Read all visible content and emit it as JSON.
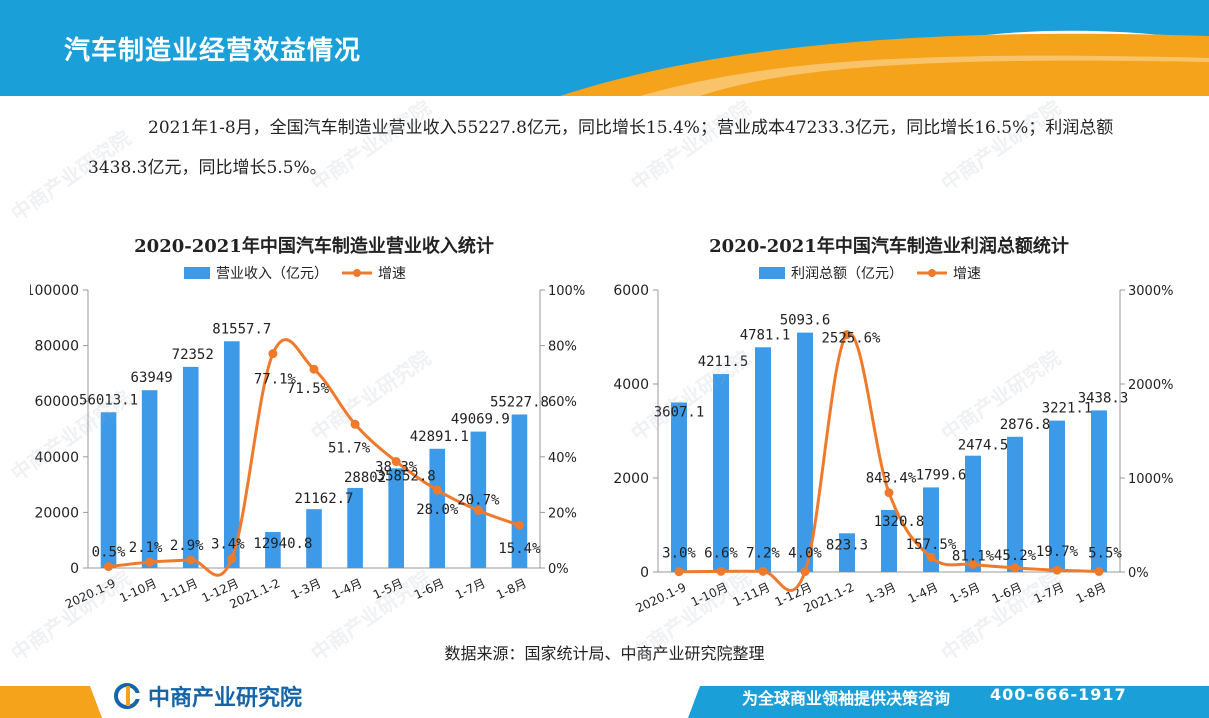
{
  "page": {
    "title": "汽车制造业经营效益情况",
    "summary": "2021年1-8月，全国汽车制造业营业收入55227.8亿元，同比增长15.4%；营业成本47233.3亿元，同比增长16.5%；利润总额3438.3亿元，同比增长5.5%。",
    "source": "数据来源：国家统计局、中商产业研究院整理",
    "logo_text": "中商产业研究院",
    "slogan": "为全球商业领袖提供决策咨询",
    "phone": "400-666-1917",
    "watermark": "中商产业研究院",
    "colors": {
      "header_blue": "#1a9fd8",
      "header_orange": "#f5a31a",
      "bar": "#3d9ae8",
      "line": "#f07a2c",
      "footer_blue": "#1a9fd8"
    }
  },
  "chart_data": [
    {
      "type": "bar",
      "title": "2020-2021年中国汽车制造业营业收入统计",
      "categories": [
        "2020.1-9",
        "1-10月",
        "1-11月",
        "1-12月",
        "2021.1-2",
        "1-3月",
        "1-4月",
        "1-5月",
        "1-6月",
        "1-7月",
        "1-8月"
      ],
      "series": [
        {
          "name": "营业收入（亿元）",
          "type": "bar",
          "axis": "left",
          "values": [
            56013.1,
            63949,
            72352,
            81557.7,
            12940.8,
            21162.7,
            28802,
            35852.8,
            42891.1,
            49069.9,
            55227.8
          ],
          "labels": [
            "56013.1",
            "63949",
            "72352",
            "81557.7",
            "12940.8",
            "21162.7",
            "28802",
            "35852.8",
            "42891.1",
            "49069.9",
            "55227.8"
          ]
        },
        {
          "name": "增速",
          "type": "line",
          "axis": "right",
          "smooth": true,
          "values": [
            0.5,
            2.1,
            2.9,
            3.4,
            77.1,
            71.5,
            51.7,
            38.3,
            28.0,
            20.7,
            15.4
          ],
          "labels": [
            "0.5%",
            "2.1%",
            "2.9%",
            "3.4%",
            "77.1%",
            "71.5%",
            "51.7%",
            "38.3%",
            "28.0%",
            "20.7%",
            "15.4%"
          ]
        }
      ],
      "ylim_left": [
        0,
        100000
      ],
      "yticks_left": [
        "0",
        "20000",
        "40000",
        "60000",
        "80000",
        "100000"
      ],
      "ylim_right": [
        0,
        100
      ],
      "yticks_right": [
        "0%",
        "20%",
        "40%",
        "60%",
        "80%",
        "100%"
      ],
      "legend_placement": "top-center"
    },
    {
      "type": "bar",
      "title": "2020-2021年中国汽车制造业利润总额统计",
      "categories": [
        "2020.1-9",
        "1-10月",
        "1-11月",
        "1-12月",
        "2021.1-2",
        "1-3月",
        "1-4月",
        "1-5月",
        "1-6月",
        "1-7月",
        "1-8月"
      ],
      "series": [
        {
          "name": "利润总额（亿元）",
          "type": "bar",
          "axis": "left",
          "values": [
            3607.1,
            4211.5,
            4781.1,
            5093.6,
            823.3,
            1320.8,
            1799.6,
            2474.5,
            2876.8,
            3221.1,
            3438.3
          ],
          "labels": [
            "3607.1",
            "4211.5",
            "4781.1",
            "5093.6",
            "823.3",
            "1320.8",
            "1799.6",
            "2474.5",
            "2876.8",
            "3221.1",
            "3438.3"
          ]
        },
        {
          "name": "增速",
          "type": "line",
          "axis": "right",
          "smooth": true,
          "values": [
            3.0,
            6.6,
            7.2,
            4.0,
            2525.6,
            843.4,
            157.5,
            81.1,
            45.2,
            19.7,
            5.5
          ],
          "labels": [
            "3.0%",
            "6.6%",
            "7.2%",
            "4.0%",
            "2525.6%",
            "843.4%",
            "157.5%",
            "81.1%",
            "45.2%",
            "19.7%",
            "5.5%"
          ]
        }
      ],
      "ylim_left": [
        0,
        6000
      ],
      "yticks_left": [
        "0",
        "2000",
        "4000",
        "6000"
      ],
      "ylim_right": [
        0,
        3000
      ],
      "yticks_right": [
        "0%",
        "1000%",
        "2000%",
        "3000%"
      ],
      "legend_placement": "top-center"
    }
  ]
}
